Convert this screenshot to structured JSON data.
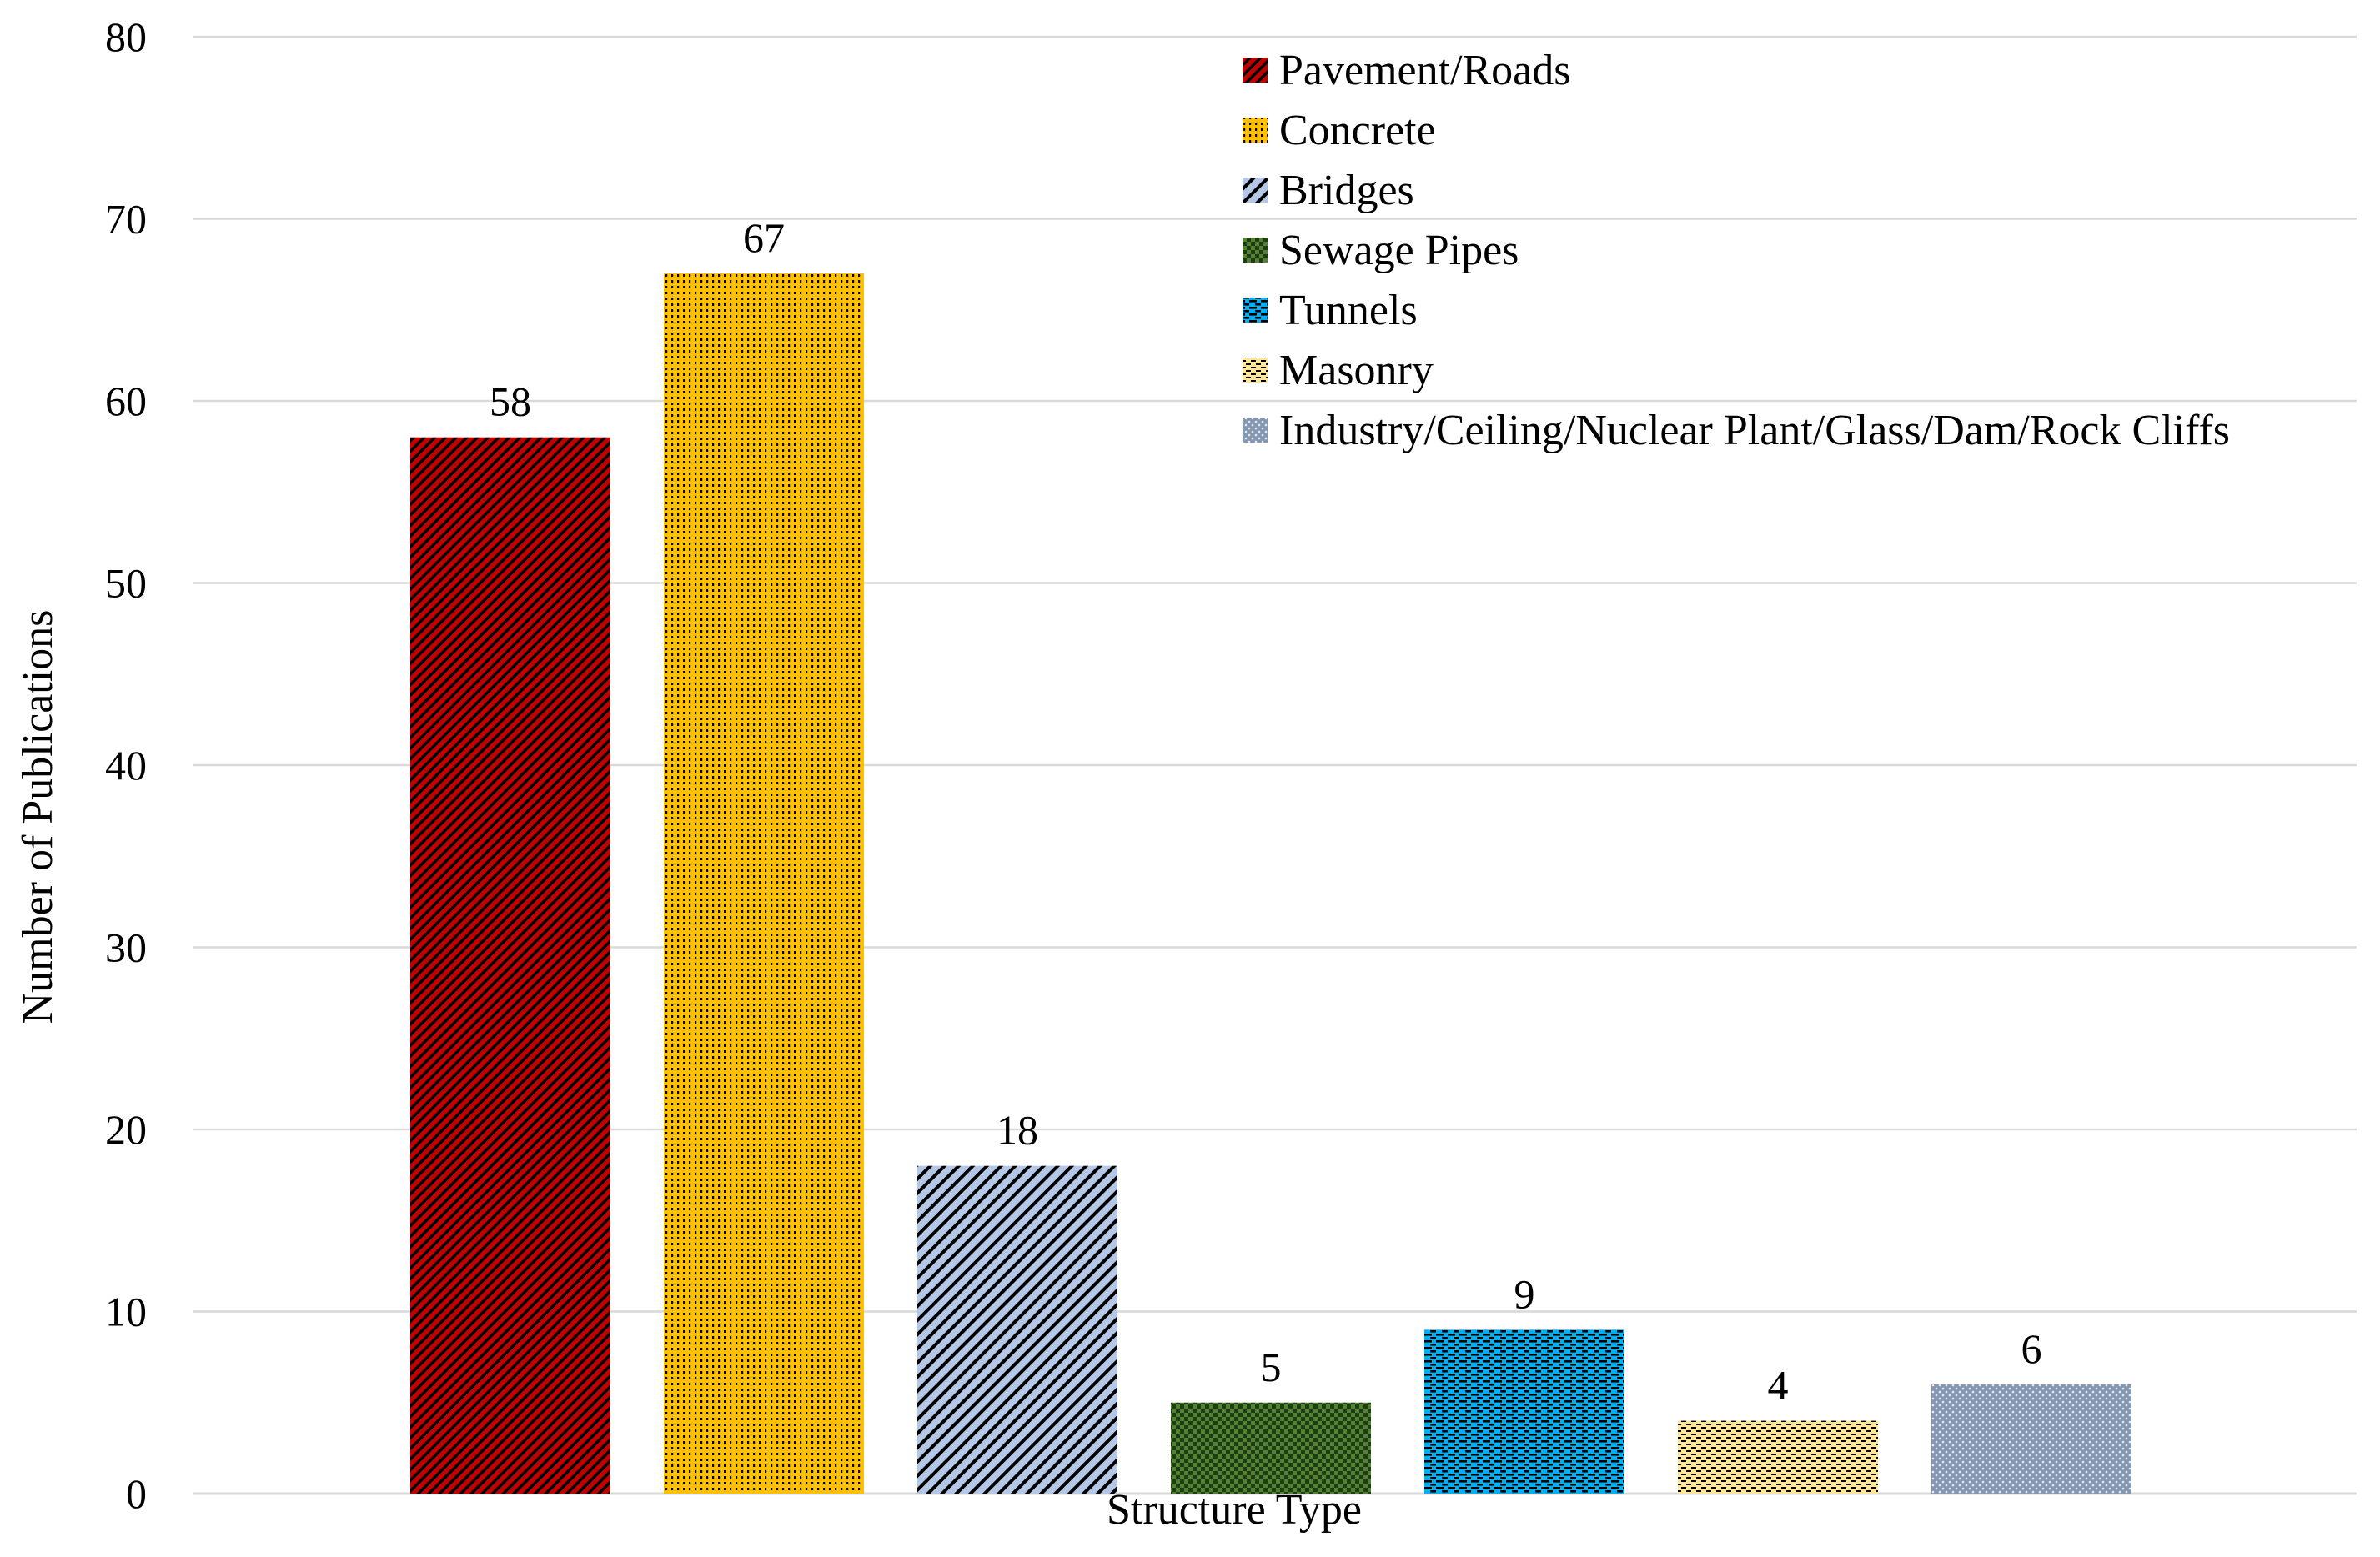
{
  "chart_data": {
    "type": "bar",
    "title": "",
    "xlabel": "Structure Type",
    "ylabel": "Number of Publications",
    "ylim": [
      0,
      80
    ],
    "yticks": [
      0,
      10,
      20,
      30,
      40,
      50,
      60,
      70,
      80
    ],
    "grid": true,
    "legend_position": "top-right",
    "series": [
      {
        "name": "Pavement/Roads",
        "values": [
          58
        ],
        "color": "#c00000",
        "pattern": "dense-diagonal"
      },
      {
        "name": "Concrete",
        "values": [
          67
        ],
        "color": "#ffc000",
        "pattern": "dotted-grid"
      },
      {
        "name": "Bridges",
        "values": [
          18
        ],
        "color": "#b4c7e7",
        "pattern": "wide-diagonal"
      },
      {
        "name": "Sewage Pipes",
        "values": [
          5
        ],
        "color": "#548235",
        "pattern": "checker"
      },
      {
        "name": "Tunnels",
        "values": [
          9
        ],
        "color": "#00b0f0",
        "pattern": "horizontal-dash"
      },
      {
        "name": "Masonry",
        "values": [
          4
        ],
        "color": "#ffe699",
        "pattern": "dashed"
      },
      {
        "name": "Industry/Ceiling/Nuclear Plant/Glass/Dam/Rock Cliffs",
        "values": [
          6
        ],
        "color": "#8497b0",
        "pattern": "dots"
      }
    ]
  }
}
